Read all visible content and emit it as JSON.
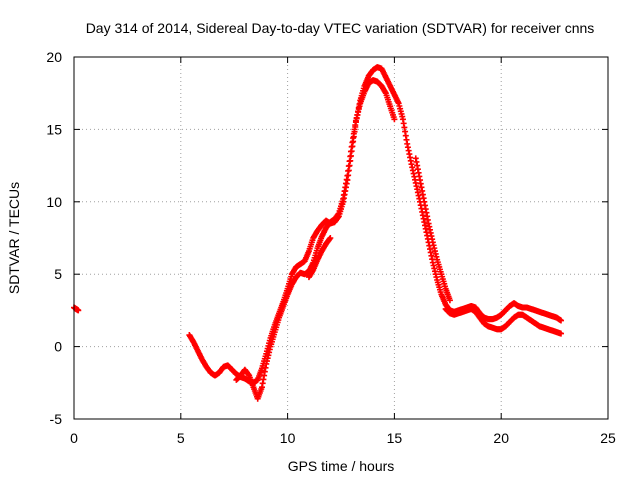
{
  "chart_data": {
    "type": "scatter",
    "title": "Day 314 of 2014, Sidereal Day-to-day VTEC variation (SDTVAR) for receiver cnns",
    "xlabel": "GPS time / hours",
    "ylabel": "SDTVAR / TECUs",
    "xlim": [
      0,
      25
    ],
    "ylim": [
      -5,
      20
    ],
    "xticks": [
      0,
      5,
      10,
      15,
      20,
      25
    ],
    "yticks": [
      -5,
      0,
      5,
      10,
      15,
      20
    ],
    "grid": true,
    "marker": "+",
    "color": "#ff0000",
    "series": [
      {
        "name": "SDTVAR",
        "segments": [
          {
            "x": [
              0.0,
              0.1,
              0.2
            ],
            "y": [
              2.7,
              2.6,
              2.5
            ]
          },
          {
            "x": [
              5.4,
              5.6,
              5.8,
              6.0,
              6.2,
              6.4,
              6.6,
              6.8,
              7.0,
              7.2,
              7.4,
              7.6,
              7.8,
              8.0,
              8.2,
              8.4,
              8.6,
              8.8,
              9.0,
              9.2,
              9.4,
              9.6,
              9.8,
              10.0,
              10.2,
              10.4,
              10.6,
              10.8,
              11.0,
              11.2,
              11.4,
              11.6,
              11.8,
              12.0,
              12.2,
              12.4,
              12.6,
              12.8,
              13.0,
              13.2,
              13.4,
              13.6,
              13.8,
              14.0,
              14.2,
              14.4,
              14.6,
              14.8,
              15.0,
              15.2,
              15.4,
              15.6,
              15.8,
              16.0,
              16.2,
              16.4,
              16.6,
              16.8,
              17.0,
              17.2,
              17.4,
              17.6,
              17.8,
              18.0,
              18.2,
              18.4,
              18.6,
              18.8,
              19.0,
              19.2,
              19.4,
              19.6,
              19.8,
              20.0,
              20.2,
              20.4,
              20.6,
              20.8,
              21.0,
              21.2,
              21.4,
              21.6,
              21.8,
              22.0,
              22.2,
              22.4,
              22.6,
              22.8
            ],
            "y": [
              0.8,
              0.3,
              -0.3,
              -0.9,
              -1.4,
              -1.8,
              -2.0,
              -1.8,
              -1.4,
              -1.3,
              -1.6,
              -1.9,
              -2.1,
              -2.2,
              -2.4,
              -2.5,
              -2.3,
              -1.5,
              -0.5,
              0.6,
              1.5,
              2.3,
              3.1,
              4.0,
              5.0,
              5.5,
              5.7,
              5.9,
              6.6,
              7.5,
              8.0,
              8.4,
              8.7,
              8.5,
              8.6,
              9.0,
              10.0,
              11.5,
              13.5,
              15.5,
              17.0,
              18.0,
              18.7,
              19.1,
              19.3,
              19.2,
              18.6,
              18.0,
              17.4,
              16.8,
              15.7,
              14.0,
              12.6,
              11.3,
              10.0,
              8.6,
              7.2,
              5.8,
              4.6,
              3.6,
              2.9,
              2.5,
              2.4,
              2.5,
              2.6,
              2.7,
              2.8,
              2.7,
              2.3,
              2.0,
              1.9,
              1.9,
              2.0,
              2.2,
              2.5,
              2.8,
              3.0,
              2.8,
              2.7,
              2.7,
              2.6,
              2.5,
              2.4,
              2.3,
              2.2,
              2.1,
              2.0,
              1.8
            ]
          },
          {
            "x": [
              7.6,
              7.8,
              8.0,
              8.2,
              8.4,
              8.6,
              8.8,
              9.0,
              9.2,
              9.4,
              9.6,
              9.8,
              10.0,
              10.2,
              10.4,
              10.6,
              10.8,
              11.0,
              11.2,
              11.4,
              11.6,
              11.8,
              12.0,
              12.2,
              12.4,
              12.6,
              12.8,
              13.0,
              13.2,
              13.4,
              13.6,
              13.8,
              14.0,
              14.2,
              14.4,
              14.6,
              14.8,
              15.0
            ],
            "y": [
              -2.3,
              -2.0,
              -1.6,
              -2.0,
              -2.8,
              -3.6,
              -2.8,
              -1.2,
              0.0,
              1.0,
              2.0,
              2.8,
              3.6,
              4.3,
              4.8,
              5.1,
              5.0,
              5.2,
              5.8,
              6.8,
              7.6,
              8.2,
              8.6,
              8.8,
              9.2,
              10.2,
              11.8,
              13.8,
              15.6,
              16.8,
              17.6,
              18.2,
              18.4,
              18.3,
              18.0,
              17.5,
              16.6,
              15.7
            ]
          },
          {
            "x": [
              11.0,
              11.2,
              11.4,
              11.6,
              11.8,
              12.0
            ],
            "y": [
              4.8,
              5.3,
              6.0,
              6.6,
              7.1,
              7.5
            ]
          },
          {
            "x": [
              16.0,
              16.2,
              16.4,
              16.6,
              16.8,
              17.0,
              17.2,
              17.4,
              17.6
            ],
            "y": [
              13.0,
              11.5,
              10.0,
              8.5,
              7.2,
              6.0,
              5.0,
              4.0,
              3.2
            ]
          },
          {
            "x": [
              17.4,
              17.6,
              17.8,
              18.0,
              18.2,
              18.4,
              18.6,
              18.8,
              19.0,
              19.2,
              19.4,
              19.6,
              19.8,
              20.0,
              20.2,
              20.4,
              20.6,
              20.8,
              21.0,
              21.2,
              21.4,
              21.6,
              21.8,
              22.0,
              22.2,
              22.4,
              22.6,
              22.8
            ],
            "y": [
              2.6,
              2.3,
              2.2,
              2.3,
              2.4,
              2.5,
              2.6,
              2.4,
              2.0,
              1.6,
              1.4,
              1.3,
              1.2,
              1.2,
              1.4,
              1.7,
              2.0,
              2.2,
              2.2,
              2.0,
              1.8,
              1.6,
              1.4,
              1.3,
              1.2,
              1.1,
              1.0,
              0.9
            ]
          }
        ]
      }
    ]
  }
}
